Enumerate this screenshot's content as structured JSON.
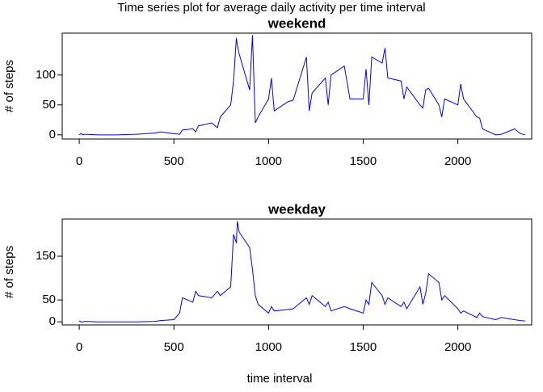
{
  "title": "Time series plot for average daily activity per time interval",
  "xlabel": "time interval",
  "chart_data": [
    {
      "type": "line",
      "title": "weekend",
      "ylabel": "# of steps",
      "color": "#0000ff",
      "x": [
        0,
        10,
        20,
        30,
        100,
        200,
        300,
        400,
        430,
        500,
        530,
        545,
        600,
        615,
        630,
        700,
        730,
        745,
        800,
        815,
        830,
        835,
        845,
        900,
        915,
        930,
        945,
        1000,
        1015,
        1030,
        1100,
        1130,
        1200,
        1215,
        1230,
        1300,
        1315,
        1330,
        1400,
        1430,
        1500,
        1515,
        1530,
        1545,
        1600,
        1615,
        1630,
        1700,
        1715,
        1730,
        1800,
        1815,
        1830,
        1845,
        1900,
        1915,
        1930,
        2000,
        2015,
        2030,
        2100,
        2115,
        2130,
        2200,
        2230,
        2300,
        2330,
        2355
      ],
      "values": [
        0,
        2,
        0,
        1,
        0,
        0,
        1,
        3,
        5,
        2,
        1,
        8,
        10,
        5,
        15,
        20,
        12,
        30,
        50,
        90,
        162,
        150,
        135,
        75,
        167,
        20,
        30,
        60,
        95,
        40,
        55,
        58,
        130,
        40,
        70,
        95,
        50,
        100,
        115,
        60,
        60,
        110,
        50,
        130,
        120,
        145,
        95,
        90,
        60,
        80,
        50,
        45,
        75,
        78,
        50,
        30,
        60,
        50,
        85,
        60,
        30,
        28,
        10,
        0,
        1,
        10,
        2,
        0
      ],
      "xlim": [
        -90,
        2390
      ],
      "ylim": [
        -7,
        170
      ],
      "xticks": [
        0,
        500,
        1000,
        1500,
        2000
      ],
      "yticks": [
        0,
        50,
        100
      ]
    },
    {
      "type": "line",
      "title": "weekday",
      "ylabel": "# of steps",
      "color": "#0000ff",
      "x": [
        0,
        10,
        20,
        30,
        100,
        200,
        300,
        400,
        430,
        500,
        530,
        545,
        600,
        615,
        630,
        700,
        730,
        745,
        800,
        815,
        830,
        835,
        845,
        900,
        915,
        930,
        945,
        1000,
        1015,
        1030,
        1100,
        1130,
        1200,
        1215,
        1230,
        1300,
        1315,
        1330,
        1400,
        1430,
        1500,
        1515,
        1530,
        1545,
        1600,
        1615,
        1630,
        1700,
        1715,
        1730,
        1800,
        1815,
        1830,
        1845,
        1900,
        1915,
        1930,
        2000,
        2015,
        2030,
        2100,
        2115,
        2130,
        2200,
        2230,
        2300,
        2330,
        2355
      ],
      "values": [
        2,
        0,
        0,
        1,
        0,
        0,
        0,
        1,
        3,
        5,
        20,
        55,
        45,
        70,
        60,
        55,
        70,
        60,
        80,
        200,
        180,
        230,
        205,
        170,
        120,
        60,
        40,
        20,
        35,
        25,
        28,
        30,
        55,
        40,
        60,
        35,
        45,
        25,
        35,
        30,
        20,
        50,
        40,
        90,
        60,
        40,
        55,
        35,
        45,
        30,
        80,
        40,
        65,
        110,
        90,
        50,
        60,
        30,
        20,
        25,
        10,
        20,
        12,
        5,
        10,
        5,
        3,
        2
      ],
      "xlim": [
        -90,
        2390
      ],
      "ylim": [
        -7,
        235
      ],
      "xticks": [
        0,
        500,
        1000,
        1500,
        2000
      ],
      "yticks": [
        0,
        50,
        150
      ]
    }
  ]
}
